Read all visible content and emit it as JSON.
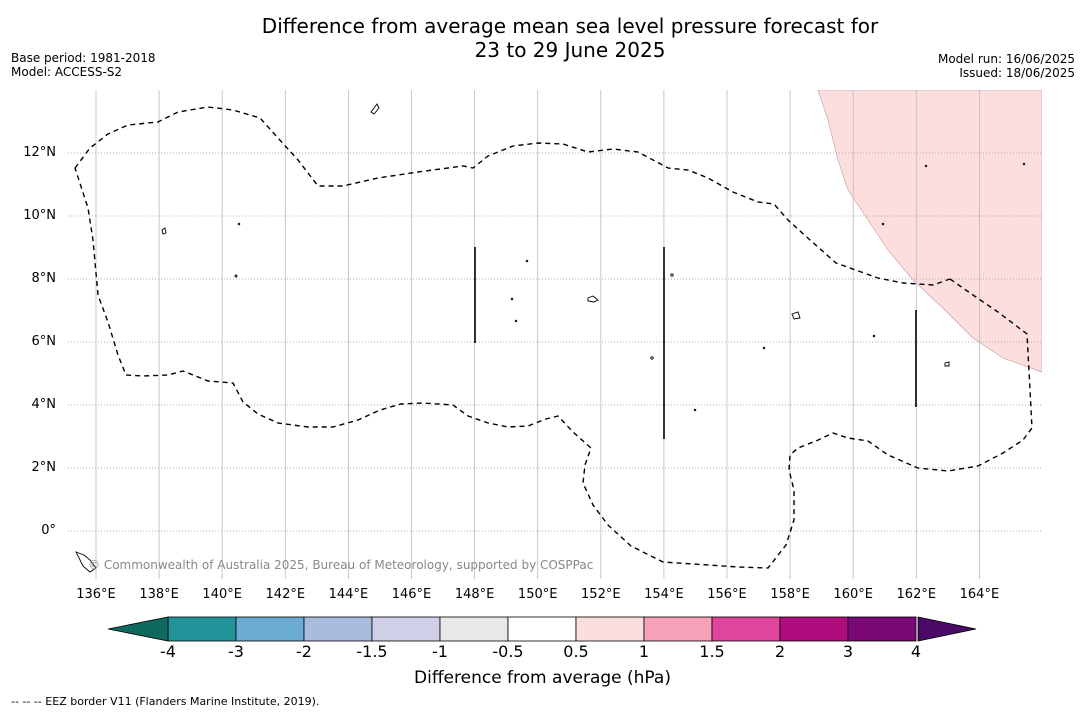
{
  "title_line1": "Difference from average mean sea level pressure forecast for",
  "title_line2": "23 to 29 June 2025",
  "meta_left": [
    "Base period: 1981-2018",
    "Model: ACCESS-S2"
  ],
  "meta_right": [
    "Model run: 16/06/2025",
    "Issued: 18/06/2025"
  ],
  "map": {
    "lon_range": [
      135,
      166
    ],
    "lat_range": [
      -1.5,
      14
    ],
    "lon_ticks": [
      "136°E",
      "138°E",
      "140°E",
      "142°E",
      "144°E",
      "146°E",
      "148°E",
      "150°E",
      "152°E",
      "154°E",
      "156°E",
      "158°E",
      "160°E",
      "162°E",
      "164°E"
    ],
    "lat_ticks": [
      "12°N",
      "10°N",
      "8°N",
      "6°N",
      "4°N",
      "2°N",
      "0°"
    ],
    "gridlines": true,
    "shaded_region": {
      "category": "0.5 to 1",
      "color": "#fddede",
      "position": "top-right"
    },
    "copyright": "© Commonwealth of Australia 2025, Bureau of Meteorology, supported by COSPPac"
  },
  "colorbar": {
    "labels": [
      "-4",
      "-3",
      "-2",
      "-1.5",
      "-1",
      "-0.5",
      "0.5",
      "1",
      "1.5",
      "2",
      "3",
      "4"
    ],
    "colors": [
      "#21949a",
      "#6aaad3",
      "#a9bcde",
      "#cfd0e7",
      "#e8e8e8",
      "#ffffff",
      "#fddede",
      "#f7a2b9",
      "#e0449c",
      "#af0c7e",
      "#7a0877"
    ],
    "under_color": "#0e6a5e",
    "over_color": "#4a0a66",
    "title": "Difference from average (hPa)"
  },
  "footnote": "--  --  -- EEZ border V11 (Flanders Marine Institute, 2019)."
}
